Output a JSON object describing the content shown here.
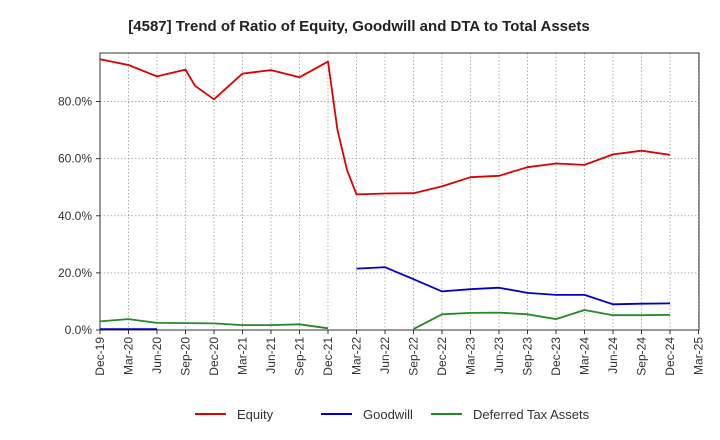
{
  "chart_data": {
    "type": "line",
    "title": "[4587]  Trend of Ratio of Equity, Goodwill and DTA to Total Assets",
    "xlabel": "",
    "ylabel": "",
    "ylim": [
      0,
      97
    ],
    "yticks": [
      "0.0%",
      "20.0%",
      "40.0%",
      "60.0%",
      "80.0%"
    ],
    "ytick_values": [
      0,
      20,
      40,
      60,
      80
    ],
    "xticks": [
      "Dec-19",
      "Mar-20",
      "Jun-20",
      "Sep-20",
      "Dec-20",
      "Mar-21",
      "Jun-21",
      "Sep-21",
      "Dec-21",
      "Mar-22",
      "Jun-22",
      "Sep-22",
      "Dec-22",
      "Mar-23",
      "Jun-23",
      "Sep-23",
      "Dec-23",
      "Mar-24",
      "Jun-24",
      "Sep-24",
      "Dec-24",
      "Mar-25"
    ],
    "grid": true,
    "legend_position": "bottom",
    "series": [
      {
        "name": "Equity",
        "color": "#dd0000",
        "points": [
          [
            "Dec-19",
            94.8
          ],
          [
            "Mar-20",
            92.8
          ],
          [
            "Jun-20",
            88.8
          ],
          [
            "Sep-20",
            91.2
          ],
          [
            "Oct-20",
            85.5
          ],
          [
            "Dec-20",
            80.8
          ],
          [
            "Mar-21",
            89.8
          ],
          [
            "Jun-21",
            91.0
          ],
          [
            "Sep-21",
            88.5
          ],
          [
            "Dec-21",
            94.0
          ],
          [
            "Jan-22",
            70.0
          ],
          [
            "Feb-22",
            56.0
          ],
          [
            "Mar-22",
            47.5
          ],
          [
            "Jun-22",
            47.8
          ],
          [
            "Sep-22",
            47.9
          ],
          [
            "Dec-22",
            50.3
          ],
          [
            "Mar-23",
            53.5
          ],
          [
            "Jun-23",
            54.0
          ],
          [
            "Sep-23",
            57.0
          ],
          [
            "Dec-23",
            58.3
          ],
          [
            "Mar-24",
            57.8
          ],
          [
            "Jun-24",
            61.5
          ],
          [
            "Sep-24",
            62.8
          ],
          [
            "Dec-24",
            61.3
          ]
        ]
      },
      {
        "name": "Goodwill",
        "color": "#0000cc",
        "segments": [
          [
            [
              "Dec-19",
              0.3
            ],
            [
              "Mar-20",
              0.3
            ],
            [
              "Jun-20",
              0.3
            ]
          ],
          [
            [
              "Mar-22",
              21.5
            ],
            [
              "Jun-22",
              22.0
            ],
            [
              "Sep-22",
              17.8
            ],
            [
              "Dec-22",
              13.5
            ],
            [
              "Mar-23",
              14.3
            ],
            [
              "Jun-23",
              14.8
            ],
            [
              "Sep-23",
              13.0
            ],
            [
              "Dec-23",
              12.3
            ],
            [
              "Mar-24",
              12.3
            ],
            [
              "Jun-24",
              9.0
            ],
            [
              "Sep-24",
              9.2
            ],
            [
              "Dec-24",
              9.3
            ]
          ]
        ]
      },
      {
        "name": "Deferred Tax Assets",
        "color": "#228b22",
        "segments": [
          [
            [
              "Dec-19",
              3.0
            ],
            [
              "Mar-20",
              3.8
            ],
            [
              "Jun-20",
              2.5
            ],
            [
              "Sep-20",
              2.4
            ],
            [
              "Dec-20",
              2.3
            ],
            [
              "Mar-21",
              1.7
            ],
            [
              "Jun-21",
              1.7
            ],
            [
              "Sep-21",
              2.0
            ],
            [
              "Dec-21",
              0.6
            ]
          ],
          [
            [
              "Sep-22",
              0.3
            ],
            [
              "Dec-22",
              5.5
            ],
            [
              "Mar-23",
              6.0
            ],
            [
              "Jun-23",
              6.1
            ],
            [
              "Sep-23",
              5.5
            ],
            [
              "Dec-23",
              3.8
            ],
            [
              "Mar-24",
              7.0
            ],
            [
              "Jun-24",
              5.2
            ],
            [
              "Sep-24",
              5.2
            ],
            [
              "Dec-24",
              5.3
            ]
          ]
        ]
      }
    ]
  }
}
